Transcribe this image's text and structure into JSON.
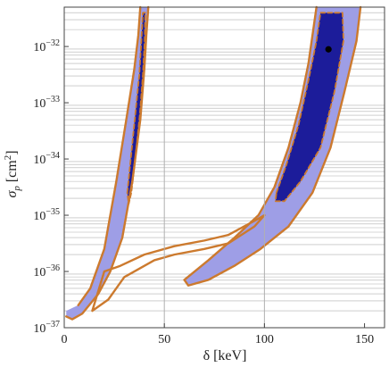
{
  "chart_data": {
    "type": "contour",
    "xlabel": "δ [keV]",
    "ylabel": "σp [cm2]",
    "ylabel_parts": {
      "symbol": "σ",
      "subscript": "p",
      "unit_open": " [cm",
      "unit_power": "2",
      "unit_close": "]"
    },
    "xlim": [
      0,
      160
    ],
    "ylim_log10": [
      -37,
      -31.3
    ],
    "y_scale": "log",
    "x_ticks": [
      {
        "value": 0,
        "label": "0"
      },
      {
        "value": 50,
        "label": "50"
      },
      {
        "value": 100,
        "label": "100"
      },
      {
        "value": 150,
        "label": "150"
      }
    ],
    "y_ticks": [
      {
        "exp": -37,
        "base": "10",
        "power": "−37"
      },
      {
        "exp": -36,
        "base": "10",
        "power": "−36"
      },
      {
        "exp": -35,
        "base": "10",
        "power": "−35"
      },
      {
        "exp": -34,
        "base": "10",
        "power": "−34"
      },
      {
        "exp": -33,
        "base": "10",
        "power": "−33"
      },
      {
        "exp": -32,
        "base": "10",
        "power": "−32"
      }
    ],
    "vertical_gridlines_x": [
      50,
      100
    ],
    "best_fit_point": {
      "x": 132,
      "log10_y": -32.05
    },
    "colors": {
      "outer_fill": "#9e9ee6",
      "inner_fill": "#1c1c9a",
      "contour_line": "#cc7a2e",
      "gridline": "#b0b0b0",
      "point": "#000000"
    },
    "regions": [
      {
        "name": "low-delta band outer",
        "level": "outer",
        "points": [
          [
            7,
            -36.6
          ],
          [
            13,
            -36.3
          ],
          [
            20,
            -35.6
          ],
          [
            26,
            -34.4
          ],
          [
            31,
            -33.3
          ],
          [
            35,
            -32.4
          ],
          [
            37,
            -31.8
          ],
          [
            38,
            -31.3
          ],
          [
            42,
            -31.3
          ],
          [
            41,
            -31.8
          ],
          [
            40,
            -32.4
          ],
          [
            38,
            -33.3
          ],
          [
            34,
            -34.4
          ],
          [
            29,
            -35.4
          ],
          [
            23,
            -36.0
          ],
          [
            17,
            -36.4
          ],
          [
            9,
            -36.75
          ],
          [
            4,
            -36.85
          ],
          [
            1,
            -36.8
          ],
          [
            1,
            -36.7
          ]
        ]
      },
      {
        "name": "low-delta band inner",
        "level": "inner",
        "points": [
          [
            31.5,
            -34.6
          ],
          [
            33.5,
            -33.9
          ],
          [
            35.5,
            -33.2
          ],
          [
            37.5,
            -32.5
          ],
          [
            38.5,
            -31.9
          ],
          [
            39.3,
            -31.4
          ],
          [
            40.5,
            -31.4
          ],
          [
            40.2,
            -31.9
          ],
          [
            39.3,
            -32.5
          ],
          [
            37.8,
            -33.2
          ],
          [
            35.8,
            -33.9
          ],
          [
            33.5,
            -34.6
          ],
          [
            32.2,
            -34.8
          ]
        ]
      },
      {
        "name": "high-delta band outer",
        "level": "outer",
        "points": [
          [
            60,
            -36.15
          ],
          [
            72,
            -35.8
          ],
          [
            85,
            -35.4
          ],
          [
            97,
            -35.0
          ],
          [
            105,
            -34.5
          ],
          [
            112,
            -33.8
          ],
          [
            118,
            -33.0
          ],
          [
            122,
            -32.3
          ],
          [
            124,
            -31.8
          ],
          [
            126,
            -31.3
          ],
          [
            148,
            -31.3
          ],
          [
            146,
            -31.9
          ],
          [
            140,
            -32.8
          ],
          [
            133,
            -33.8
          ],
          [
            124,
            -34.6
          ],
          [
            112,
            -35.2
          ],
          [
            98,
            -35.6
          ],
          [
            85,
            -35.9
          ],
          [
            72,
            -36.15
          ],
          [
            62,
            -36.25
          ]
        ]
      },
      {
        "name": "high-delta band inner",
        "level": "inner",
        "points": [
          [
            106,
            -34.6
          ],
          [
            111,
            -34.1
          ],
          [
            117,
            -33.4
          ],
          [
            122,
            -32.6
          ],
          [
            126,
            -31.9
          ],
          [
            128,
            -31.4
          ],
          [
            139,
            -31.4
          ],
          [
            139.5,
            -31.9
          ],
          [
            135,
            -32.8
          ],
          [
            128,
            -33.8
          ],
          [
            118,
            -34.4
          ],
          [
            110,
            -34.75
          ],
          [
            105.5,
            -34.75
          ]
        ]
      }
    ],
    "contour_lines": [
      {
        "name": "low band boundary",
        "level": "outer",
        "style": "solid",
        "points": [
          [
            7,
            -36.6
          ],
          [
            13,
            -36.3
          ],
          [
            20,
            -35.6
          ],
          [
            26,
            -34.4
          ],
          [
            31,
            -33.3
          ],
          [
            35,
            -32.4
          ],
          [
            37,
            -31.8
          ],
          [
            38,
            -31.3
          ]
        ]
      },
      {
        "name": "low band boundary right",
        "level": "outer",
        "style": "solid",
        "points": [
          [
            42,
            -31.3
          ],
          [
            41,
            -31.8
          ],
          [
            40,
            -32.4
          ],
          [
            38,
            -33.3
          ],
          [
            34,
            -34.4
          ],
          [
            29,
            -35.4
          ],
          [
            23,
            -36.0
          ],
          [
            17,
            -36.4
          ],
          [
            9,
            -36.75
          ],
          [
            4,
            -36.85
          ],
          [
            1,
            -36.8
          ]
        ]
      },
      {
        "name": "low band inner boundary",
        "level": "inner",
        "style": "dashed",
        "points": [
          [
            31.5,
            -34.6
          ],
          [
            33.5,
            -33.9
          ],
          [
            35.5,
            -33.2
          ],
          [
            37.5,
            -32.5
          ],
          [
            38.5,
            -31.9
          ],
          [
            39.3,
            -31.4
          ],
          [
            40.5,
            -31.4
          ],
          [
            40.2,
            -31.9
          ],
          [
            39.3,
            -32.5
          ],
          [
            37.8,
            -33.2
          ],
          [
            35.8,
            -33.9
          ],
          [
            33.5,
            -34.6
          ],
          [
            32.2,
            -34.8
          ],
          [
            31.5,
            -34.6
          ]
        ]
      },
      {
        "name": "high band boundary",
        "level": "outer",
        "style": "solid",
        "points": [
          [
            60,
            -36.15
          ],
          [
            72,
            -35.8
          ],
          [
            85,
            -35.4
          ],
          [
            97,
            -35.0
          ],
          [
            105,
            -34.5
          ],
          [
            112,
            -33.8
          ],
          [
            118,
            -33.0
          ],
          [
            122,
            -32.3
          ],
          [
            124,
            -31.8
          ],
          [
            126,
            -31.3
          ]
        ]
      },
      {
        "name": "high band boundary right",
        "level": "outer",
        "style": "solid",
        "points": [
          [
            148,
            -31.3
          ],
          [
            146,
            -31.9
          ],
          [
            140,
            -32.8
          ],
          [
            133,
            -33.8
          ],
          [
            124,
            -34.6
          ],
          [
            112,
            -35.2
          ],
          [
            98,
            -35.6
          ],
          [
            85,
            -35.9
          ],
          [
            72,
            -36.15
          ],
          [
            62,
            -36.25
          ],
          [
            60,
            -36.15
          ]
        ]
      },
      {
        "name": "high band inner boundary",
        "level": "inner",
        "style": "dashed",
        "points": [
          [
            106,
            -34.6
          ],
          [
            111,
            -34.1
          ],
          [
            117,
            -33.4
          ],
          [
            122,
            -32.6
          ],
          [
            126,
            -31.9
          ],
          [
            128,
            -31.4
          ],
          [
            139,
            -31.4
          ],
          [
            139.5,
            -31.9
          ],
          [
            135,
            -32.8
          ],
          [
            128,
            -33.8
          ],
          [
            118,
            -34.4
          ],
          [
            110,
            -34.75
          ],
          [
            105.5,
            -34.75
          ],
          [
            106,
            -34.6
          ]
        ]
      },
      {
        "name": "connecting contour",
        "level": "outer",
        "style": "solid",
        "points": [
          [
            20,
            -36.0
          ],
          [
            28,
            -35.9
          ],
          [
            40,
            -35.7
          ],
          [
            55,
            -35.55
          ],
          [
            70,
            -35.45
          ],
          [
            82,
            -35.35
          ],
          [
            95,
            -35.1
          ],
          [
            100,
            -35.0
          ],
          [
            95,
            -35.2
          ],
          [
            82,
            -35.5
          ],
          [
            70,
            -35.6
          ],
          [
            55,
            -35.7
          ],
          [
            45,
            -35.8
          ],
          [
            30,
            -36.1
          ],
          [
            22,
            -36.5
          ],
          [
            14,
            -36.7
          ],
          [
            20,
            -36.0
          ]
        ]
      }
    ]
  }
}
